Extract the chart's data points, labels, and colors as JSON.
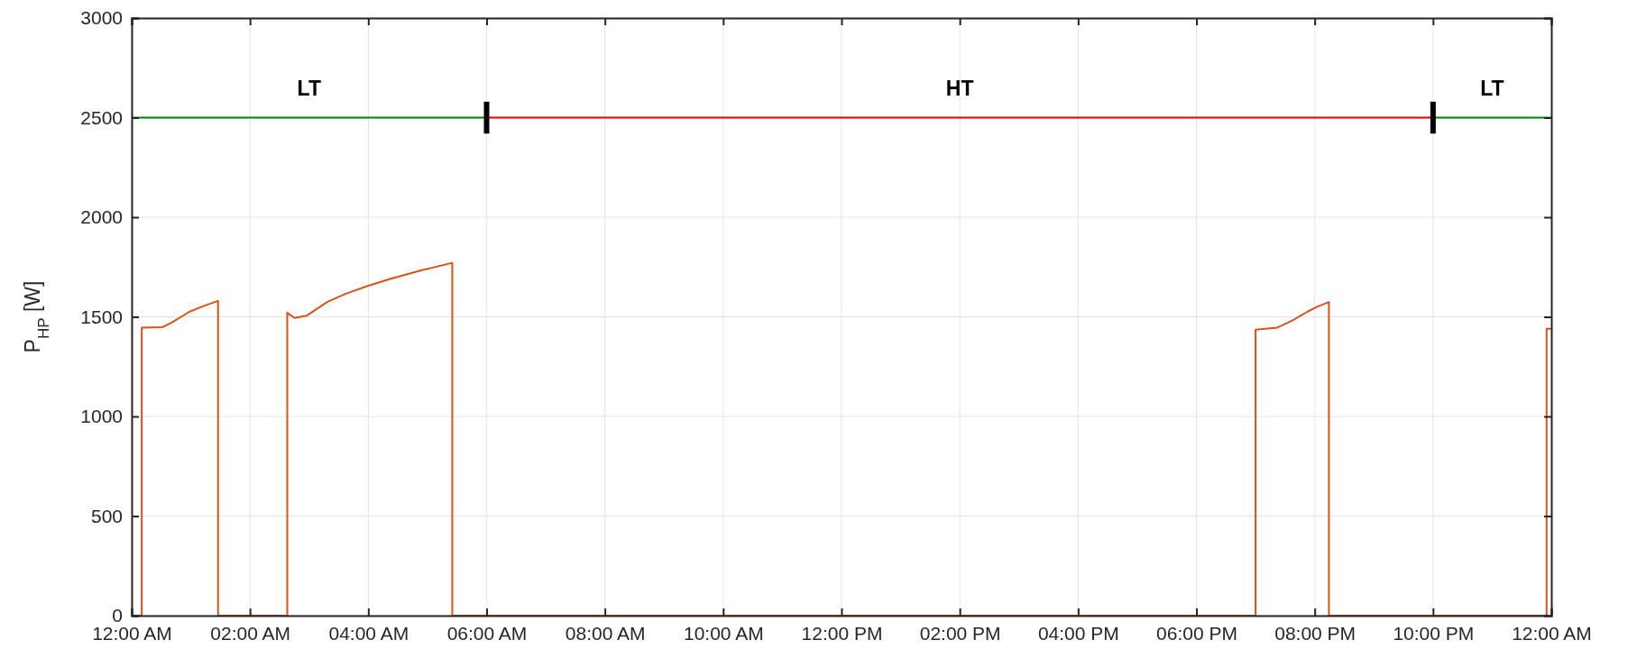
{
  "chart_data": {
    "type": "line",
    "ylabel": "P$_{HP}$ [W]",
    "xlim": [
      0,
      24
    ],
    "ylim": [
      0,
      3000
    ],
    "xticks": [
      {
        "value": 0,
        "label": "12:00 AM"
      },
      {
        "value": 2,
        "label": "02:00 AM"
      },
      {
        "value": 4,
        "label": "04:00 AM"
      },
      {
        "value": 6,
        "label": "06:00 AM"
      },
      {
        "value": 8,
        "label": "08:00 AM"
      },
      {
        "value": 10,
        "label": "10:00 AM"
      },
      {
        "value": 12,
        "label": "12:00 PM"
      },
      {
        "value": 14,
        "label": "02:00 PM"
      },
      {
        "value": 16,
        "label": "04:00 PM"
      },
      {
        "value": 18,
        "label": "06:00 PM"
      },
      {
        "value": 20,
        "label": "08:00 PM"
      },
      {
        "value": 22,
        "label": "10:00 PM"
      },
      {
        "value": 24,
        "label": "12:00 AM"
      }
    ],
    "yticks": [
      0,
      500,
      1000,
      1500,
      2000,
      2500,
      3000
    ],
    "grid": true,
    "series": [
      {
        "color": "#008000",
        "x": [
          0,
          6,
          null,
          22,
          24
        ],
        "values": [
          2500,
          2500,
          null,
          2500,
          2500
        ]
      },
      {
        "color": "#e00000",
        "x": [
          6,
          22
        ],
        "values": [
          2500,
          2500
        ]
      },
      {
        "color": "#000000",
        "x": [
          6,
          6
        ],
        "values": [
          2420,
          2580
        ]
      },
      {
        "color": "#000000",
        "x": [
          22,
          22
        ],
        "values": [
          2420,
          2580
        ]
      },
      {
        "color": "#d95319",
        "x": [
          0,
          0.17,
          0.17,
          0.52,
          0.67,
          0.98,
          1.23,
          1.46,
          1.46,
          2.63,
          2.63,
          2.75,
          2.96,
          3.31,
          3.62,
          4.0,
          4.38,
          4.89,
          5.42,
          5.42,
          19.0,
          19.0,
          19.37,
          19.62,
          19.88,
          20.03,
          20.24,
          20.24,
          23.92,
          23.92,
          24
        ],
        "values": [
          0,
          0,
          1446,
          1448,
          1470,
          1526,
          1556,
          1580,
          0,
          0,
          1521,
          1494,
          1506,
          1575,
          1616,
          1656,
          1691,
          1733,
          1771,
          0,
          0,
          1436,
          1446,
          1481,
          1526,
          1549,
          1574,
          0,
          0,
          1440,
          1440
        ]
      }
    ],
    "annotations": [
      "LT",
      "HT",
      "LT"
    ]
  }
}
